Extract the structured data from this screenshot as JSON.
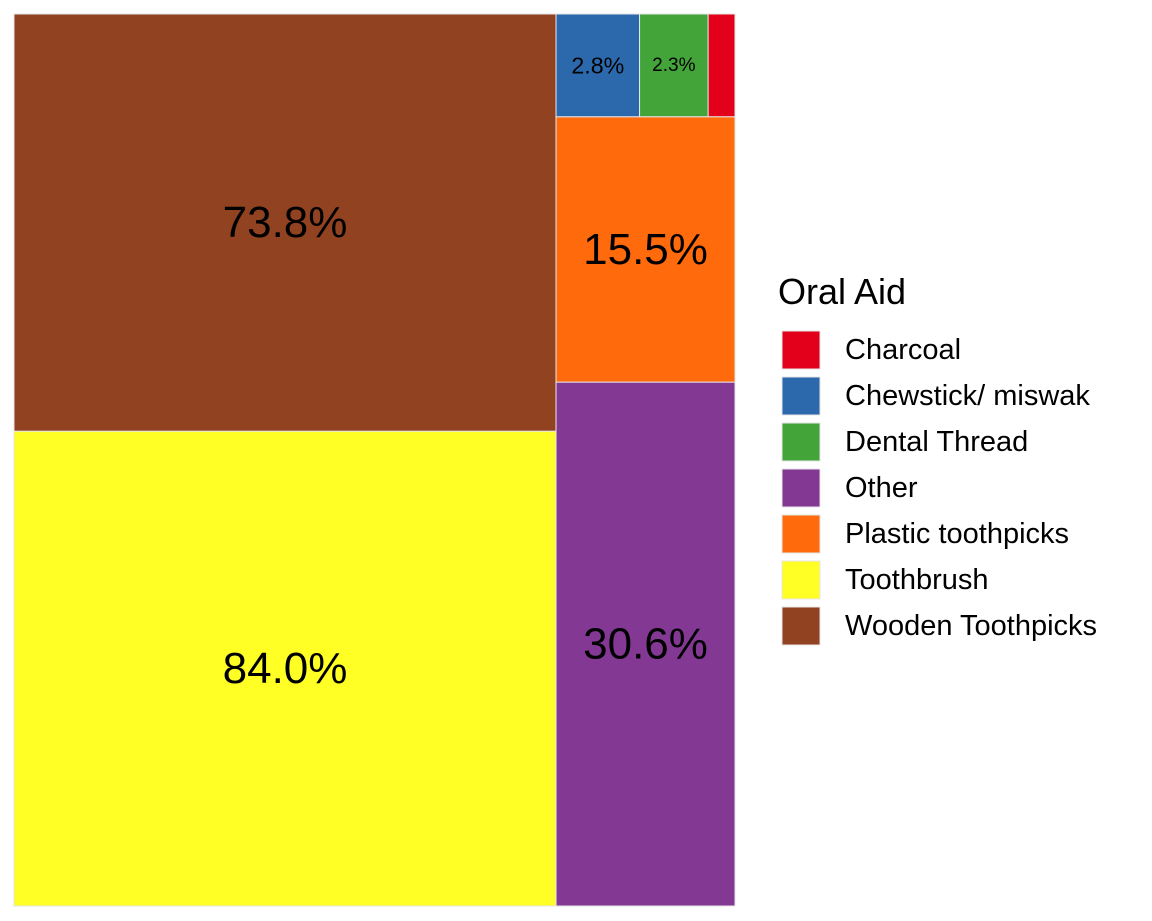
{
  "chart_data": {
    "type": "treemap",
    "legend": {
      "title": "Oral Aid",
      "position": "right"
    },
    "categories": [
      "Charcoal",
      "Chewstick/ miswak",
      "Dental Thread",
      "Other",
      "Plastic toothpicks",
      "Toothbrush",
      "Wooden Toothpicks"
    ],
    "colors": {
      "Charcoal": "#E3001B",
      "Chewstick/ miswak": "#2C69AC",
      "Dental Thread": "#43A43A",
      "Other": "#833894",
      "Plastic toothpicks": "#FF6A0C",
      "Toothbrush": "#FFFF26",
      "Wooden Toothpicks": "#914321"
    },
    "tiles": [
      {
        "category": "Toothbrush",
        "value": 84.0,
        "label": "84.0%"
      },
      {
        "category": "Wooden Toothpicks",
        "value": 73.8,
        "label": "73.8%"
      },
      {
        "category": "Other",
        "value": 30.6,
        "label": "30.6%"
      },
      {
        "category": "Plastic toothpicks",
        "value": 15.5,
        "label": "15.5%"
      },
      {
        "category": "Chewstick/ miswak",
        "value": 2.8,
        "label": "2.8%"
      },
      {
        "category": "Dental Thread",
        "value": 2.3,
        "label": "2.3%"
      },
      {
        "category": "Charcoal",
        "value": 0.9,
        "label": ""
      }
    ]
  }
}
